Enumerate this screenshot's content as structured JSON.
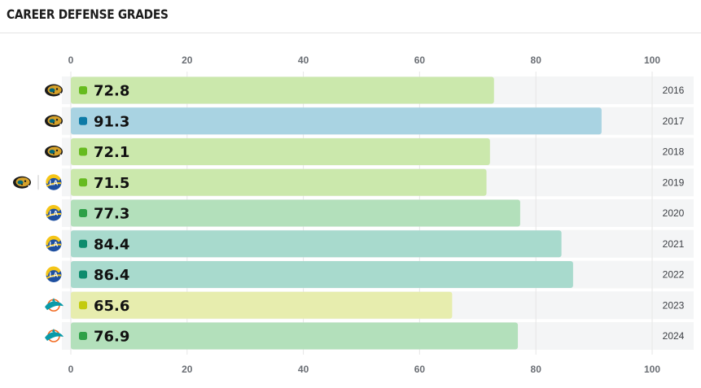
{
  "title": "CAREER DEFENSE GRADES",
  "colors": {
    "grid": "#e6e6e6",
    "band_bg": "#f4f5f6",
    "jaguars": "#006778",
    "jaguars_gold": "#d7a22a",
    "rams": "#1e4fa0",
    "rams_gold": "#f5c518",
    "dolphins": "#0a9aa8",
    "dolphins_orange": "#f26a21"
  },
  "chart_data": {
    "type": "bar",
    "orientation": "horizontal",
    "title": "CAREER DEFENSE GRADES",
    "xlim": [
      0,
      100
    ],
    "xticks": [
      0,
      20,
      40,
      60,
      80,
      100
    ],
    "grid": true,
    "categories": [
      "2016",
      "2017",
      "2018",
      "2019",
      "2020",
      "2021",
      "2022",
      "2023",
      "2024"
    ],
    "values": [
      72.8,
      91.3,
      72.1,
      71.5,
      77.3,
      84.4,
      86.4,
      65.6,
      76.9
    ],
    "value_labels": [
      "72.8",
      "91.3",
      "72.1",
      "71.5",
      "77.3",
      "84.4",
      "86.4",
      "65.6",
      "76.9"
    ],
    "bar_colors": [
      "#cbe8ac",
      "#a9d3e2",
      "#cbe8ac",
      "#cbe8ac",
      "#b3e0bb",
      "#a8dacd",
      "#a8dacd",
      "#e7edae",
      "#b3e0bb"
    ],
    "dot_colors": [
      "#66bb1f",
      "#0d7aa6",
      "#66bb1f",
      "#66bb1f",
      "#2ea047",
      "#0d8c6d",
      "#0d8c6d",
      "#c3cb0f",
      "#2ea047"
    ],
    "team_logos": [
      [
        "jaguars-logo"
      ],
      [
        "jaguars-logo"
      ],
      [
        "jaguars-logo"
      ],
      [
        "jaguars-logo",
        "rams-logo"
      ],
      [
        "rams-logo"
      ],
      [
        "rams-logo"
      ],
      [
        "rams-logo"
      ],
      [
        "dolphins-logo"
      ],
      [
        "dolphins-logo"
      ]
    ]
  }
}
